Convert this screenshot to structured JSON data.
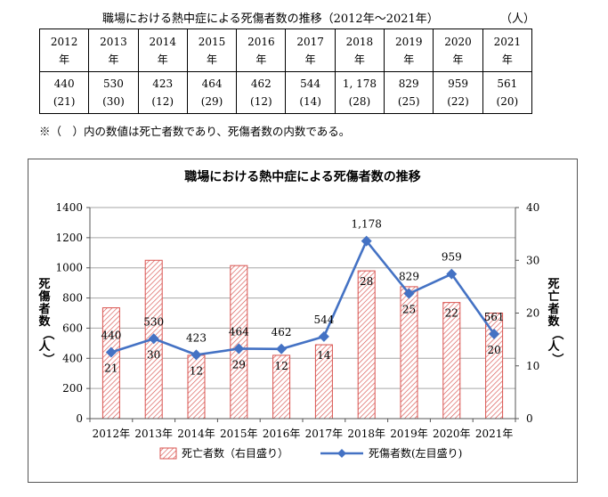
{
  "caption": {
    "title": "職場における熱中症による死傷者数の推移（2012年～2021年）",
    "unit": "（人）"
  },
  "table": {
    "years": [
      "2012",
      "2013",
      "2014",
      "2015",
      "2016",
      "2017",
      "2018",
      "2019",
      "2020",
      "2021"
    ],
    "year_suffix": "年",
    "casualties": [
      "440",
      "530",
      "423",
      "464",
      "462",
      "544",
      "1, 178",
      "829",
      "959",
      "561"
    ],
    "deaths": [
      "(21)",
      "(30)",
      "(12)",
      "(29)",
      "(12)",
      "(14)",
      "(28)",
      "(25)",
      "(22)",
      "(20)"
    ]
  },
  "note": "※（　）内の数値は死亡者数であり、死傷者数の内数である。",
  "colors": {
    "bar_stroke": "#d9534f",
    "bar_hatch": "#d9534f",
    "line": "#4472c4",
    "grid": "#a6a6a6"
  },
  "chart_data": {
    "type": "bar",
    "title": "職場における熱中症による死傷者数の推移",
    "categories": [
      "2012年",
      "2013年",
      "2014年",
      "2015年",
      "2016年",
      "2017年",
      "2018年",
      "2019年",
      "2020年",
      "2021年"
    ],
    "series": [
      {
        "name": "死亡者数（右目盛り）",
        "type": "bar",
        "axis": "right",
        "values": [
          21,
          30,
          12,
          29,
          12,
          14,
          28,
          25,
          22,
          20
        ],
        "labels": [
          "21",
          "30",
          "12",
          "29",
          "12",
          "14",
          "28",
          "25",
          "22",
          "20"
        ]
      },
      {
        "name": "死傷者数(左目盛り)",
        "type": "line",
        "axis": "left",
        "values": [
          440,
          530,
          423,
          464,
          462,
          544,
          1178,
          829,
          959,
          561
        ],
        "labels": [
          "440",
          "530",
          "423",
          "464",
          "462",
          "544",
          "1,178",
          "829",
          "959",
          "561"
        ]
      }
    ],
    "ylabel": "死傷者数（人）",
    "y2label": "死亡者数（人）",
    "ylim": [
      0,
      1400
    ],
    "y2lim": [
      0,
      40
    ],
    "yticks": [
      "0",
      "200",
      "400",
      "600",
      "800",
      "1000",
      "1200",
      "1400"
    ],
    "y2ticks": [
      "0",
      "10",
      "20",
      "30",
      "40"
    ],
    "grid": true,
    "legend": "bottom"
  }
}
